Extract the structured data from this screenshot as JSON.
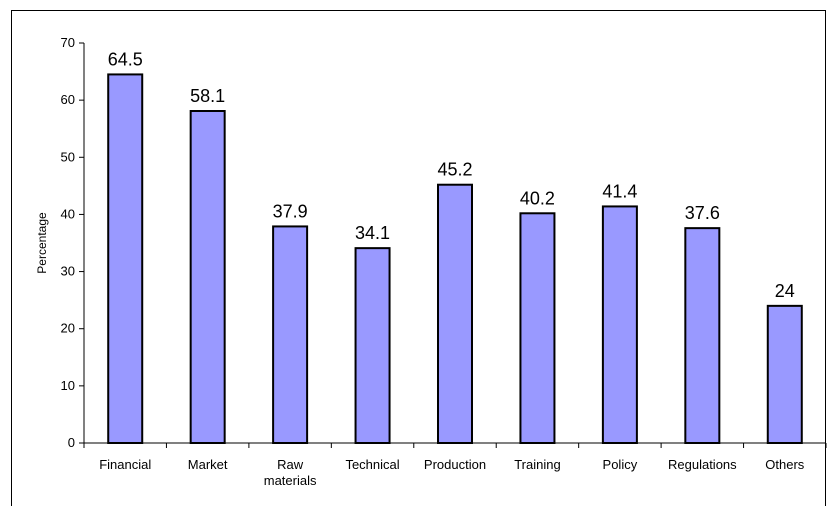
{
  "chart_data": {
    "type": "bar",
    "title": "",
    "xlabel": "",
    "ylabel": "Percentage",
    "ylim": [
      0,
      70
    ],
    "yticks": [
      0,
      10,
      20,
      30,
      40,
      50,
      60,
      70
    ],
    "grid": false,
    "categories": [
      [
        "Financial"
      ],
      [
        "Market"
      ],
      [
        "Raw",
        "materials"
      ],
      [
        "Technical"
      ],
      [
        "Production"
      ],
      [
        "Training"
      ],
      [
        "Policy"
      ],
      [
        "Regulations"
      ],
      [
        "Others"
      ]
    ],
    "values": [
      64.5,
      58.1,
      37.9,
      34.1,
      45.2,
      40.2,
      41.4,
      37.6,
      24
    ],
    "value_labels": [
      "64.5",
      "58.1",
      "37.9",
      "34.1",
      "45.2",
      "40.2",
      "41.4",
      "37.6",
      "24"
    ],
    "colors": {
      "bar_fill": "#9999ff",
      "bar_stroke": "#000000",
      "axis": "#000000"
    }
  }
}
